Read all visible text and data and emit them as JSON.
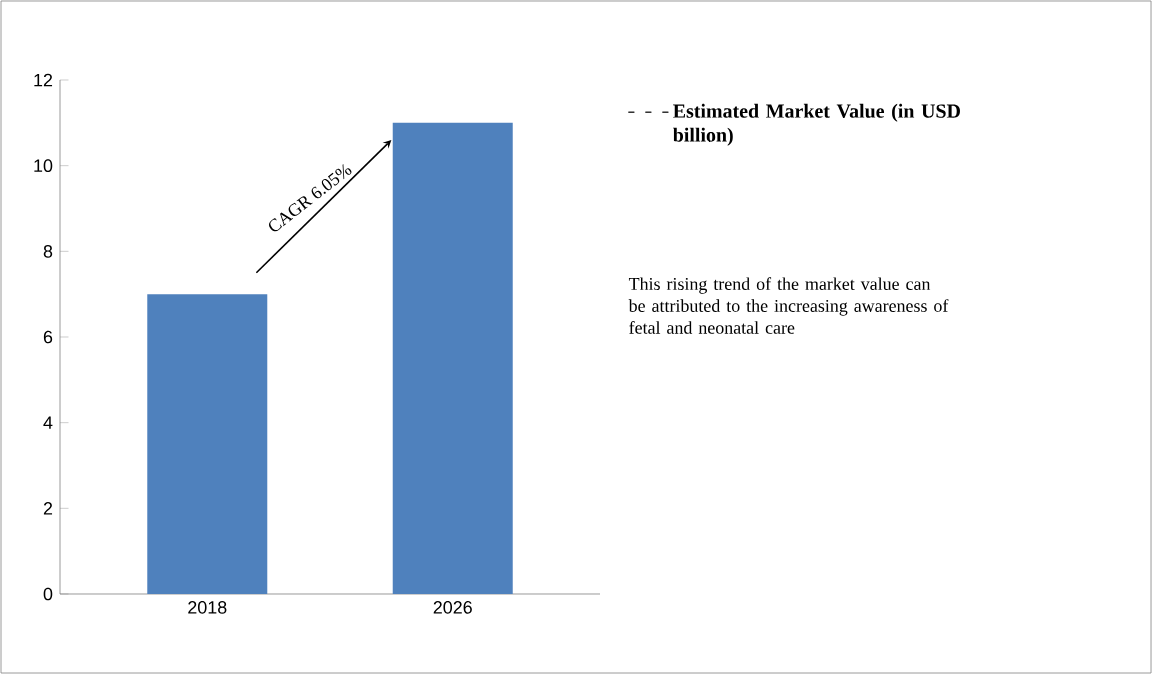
{
  "chart_data": {
    "type": "bar",
    "categories": [
      "2018",
      "2026"
    ],
    "series": [
      {
        "name": "Estimated Market Value (in USD billion)",
        "color": "#4f81bd",
        "values": [
          7,
          11
        ]
      }
    ],
    "ylim": [
      0,
      12
    ],
    "yticks": [
      0,
      2,
      4,
      6,
      8,
      10,
      12
    ],
    "legend": "top right",
    "annotations": [
      "CAGR 6.05%",
      "This rising trend of the market value can be attributed to the increasing awareness of fetal and neonatal care"
    ]
  }
}
